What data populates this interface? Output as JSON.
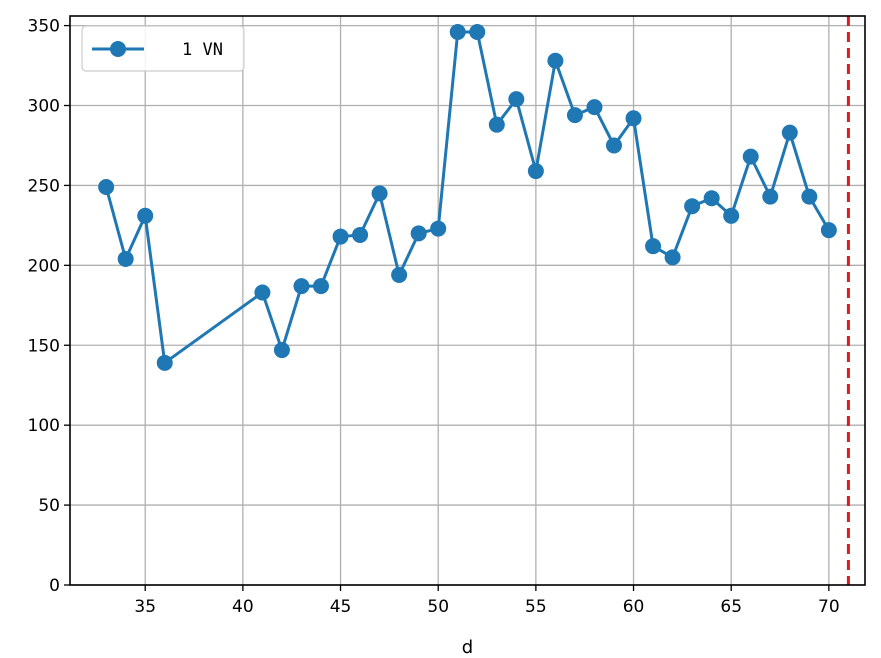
{
  "chart_data": {
    "type": "line",
    "title": "",
    "xlabel": "d",
    "ylabel": "",
    "xlim": [
      31.15,
      71.85
    ],
    "ylim": [
      0,
      356
    ],
    "x_ticks": [
      35,
      40,
      45,
      50,
      55,
      60,
      65,
      70
    ],
    "y_ticks": [
      0,
      50,
      100,
      150,
      200,
      250,
      300,
      350
    ],
    "grid": true,
    "legend_position": "upper-left",
    "series": [
      {
        "name": "1 VN",
        "color": "#1f77b4",
        "marker": "circle",
        "x": [
          33,
          34,
          35,
          36,
          41,
          42,
          43,
          44,
          45,
          46,
          47,
          48,
          49,
          50,
          51,
          52,
          53,
          54,
          55,
          56,
          57,
          58,
          59,
          60,
          61,
          62,
          63,
          64,
          65,
          66,
          67,
          68,
          69,
          70
        ],
        "y": [
          249,
          204,
          231,
          139,
          183,
          147,
          187,
          187,
          218,
          219,
          245,
          194,
          220,
          223,
          346,
          346,
          288,
          304,
          259,
          328,
          294,
          299,
          275,
          292,
          212,
          205,
          237,
          242,
          231,
          268,
          243,
          283,
          243,
          222
        ]
      }
    ],
    "reference_lines": [
      {
        "axis": "x",
        "value": 71,
        "color": "#e31a1c",
        "style": "dashed"
      }
    ]
  }
}
